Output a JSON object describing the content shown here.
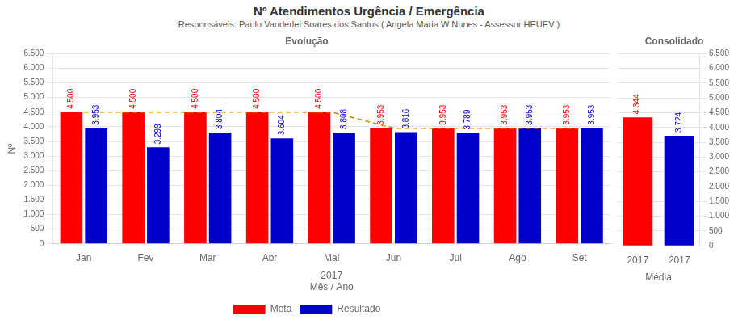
{
  "chart_data": [
    {
      "type": "bar",
      "title": "Nº Atendimentos Urgência / Emergência",
      "subtitle": "Responsáveis: Paulo Vanderlei Soares dos Santos ( Angela Maria  W Nunes  - Assessor HEUEV )",
      "annotations": [
        "Evolução"
      ],
      "categories": [
        "Jan",
        "Fev",
        "Mar",
        "Abr",
        "Mai",
        "Jun",
        "Jul",
        "Ago",
        "Set"
      ],
      "series": [
        {
          "name": "Meta",
          "color": "#ff0000",
          "values": [
            4500,
            4500,
            4500,
            4500,
            4500,
            3953,
            3953,
            3953,
            3953
          ],
          "value_labels": [
            "4.500",
            "4.500",
            "4.500",
            "4.500",
            "4.500",
            "3.953",
            "3.953",
            "3.953",
            "3.953"
          ]
        },
        {
          "name": "Resultado",
          "color": "#0000cc",
          "values": [
            3953,
            3299,
            3804,
            3604,
            3808,
            3816,
            3789,
            3953,
            3953
          ],
          "value_labels": [
            "3.953",
            "3.299",
            "3.804",
            "3.604",
            "3.808",
            "3.816",
            "3.789",
            "3.953",
            "3.953"
          ]
        },
        {
          "type": "line",
          "line_style": "dashed",
          "color": "#cc8800",
          "values": [
            4500,
            4500,
            4500,
            4500,
            4500,
            3953,
            3953,
            3953,
            3953
          ]
        }
      ],
      "xlabel": [
        "2017",
        "Mês / Ano"
      ],
      "ylabel": "Nº",
      "ylim": [
        0,
        6500
      ],
      "yticks": [
        0,
        500,
        {
          "value": 1000,
          "label": "1.000"
        },
        {
          "value": 1500,
          "label": "1.500"
        },
        {
          "value": 2000,
          "label": "2.000"
        },
        {
          "value": 2500,
          "label": "2.500"
        },
        {
          "value": 3000,
          "label": "3.000"
        },
        {
          "value": 3500,
          "label": "3.500"
        },
        {
          "value": 4000,
          "label": "4.000"
        },
        {
          "value": 4500,
          "label": "4.500"
        },
        {
          "value": 5000,
          "label": "5.000"
        },
        {
          "value": 5500,
          "label": "5.500"
        },
        {
          "value": 6000,
          "label": "6.000"
        },
        {
          "value": 6500,
          "label": "6.500"
        }
      ],
      "grid": true,
      "legend": "bottom",
      "data_labels": true
    },
    {
      "type": "bar",
      "title": "Consolidado",
      "categories": [
        "2017",
        "2017"
      ],
      "values": [
        4344,
        3724
      ],
      "value_labels": [
        "4.344",
        "3.724"
      ],
      "colors": [
        "#ff0000",
        "#0000cc"
      ],
      "xlabel": "Média",
      "ylim": [
        0,
        6500
      ],
      "yticks": [
        0,
        500,
        {
          "value": 1000,
          "label": "1.000"
        },
        {
          "value": 1500,
          "label": "1.500"
        },
        {
          "value": 2000,
          "label": "2.000"
        },
        {
          "value": 2500,
          "label": "2.500"
        },
        {
          "value": 3000,
          "label": "3.000"
        },
        {
          "value": 3500,
          "label": "3.500"
        },
        {
          "value": 4000,
          "label": "4.000"
        },
        {
          "value": 4500,
          "label": "4.500"
        },
        {
          "value": 5000,
          "label": "5.000"
        },
        {
          "value": 5500,
          "label": "5.500"
        },
        {
          "value": 6000,
          "label": "6.000"
        },
        {
          "value": 6500,
          "label": "6.500"
        }
      ],
      "grid": true,
      "data_labels": true
    }
  ]
}
